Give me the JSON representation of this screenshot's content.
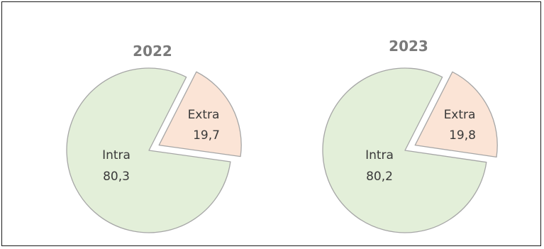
{
  "chart_data": [
    {
      "type": "pie",
      "title": "2022",
      "slices": [
        {
          "label": "Intra",
          "value": 80.3,
          "display": "80,3",
          "color": "#e3efd9"
        },
        {
          "label": "Extra",
          "value": 19.7,
          "display": "19,7",
          "color": "#fbe4d6"
        }
      ],
      "exploded": "Extra",
      "slice_border": "#a6a6a6"
    },
    {
      "type": "pie",
      "title": "2023",
      "slices": [
        {
          "label": "Intra",
          "value": 80.2,
          "display": "80,2",
          "color": "#e3efd9"
        },
        {
          "label": "Extra",
          "value": 19.8,
          "display": "19,8",
          "color": "#fbe4d6"
        }
      ],
      "exploded": "Extra",
      "slice_border": "#a6a6a6"
    }
  ]
}
